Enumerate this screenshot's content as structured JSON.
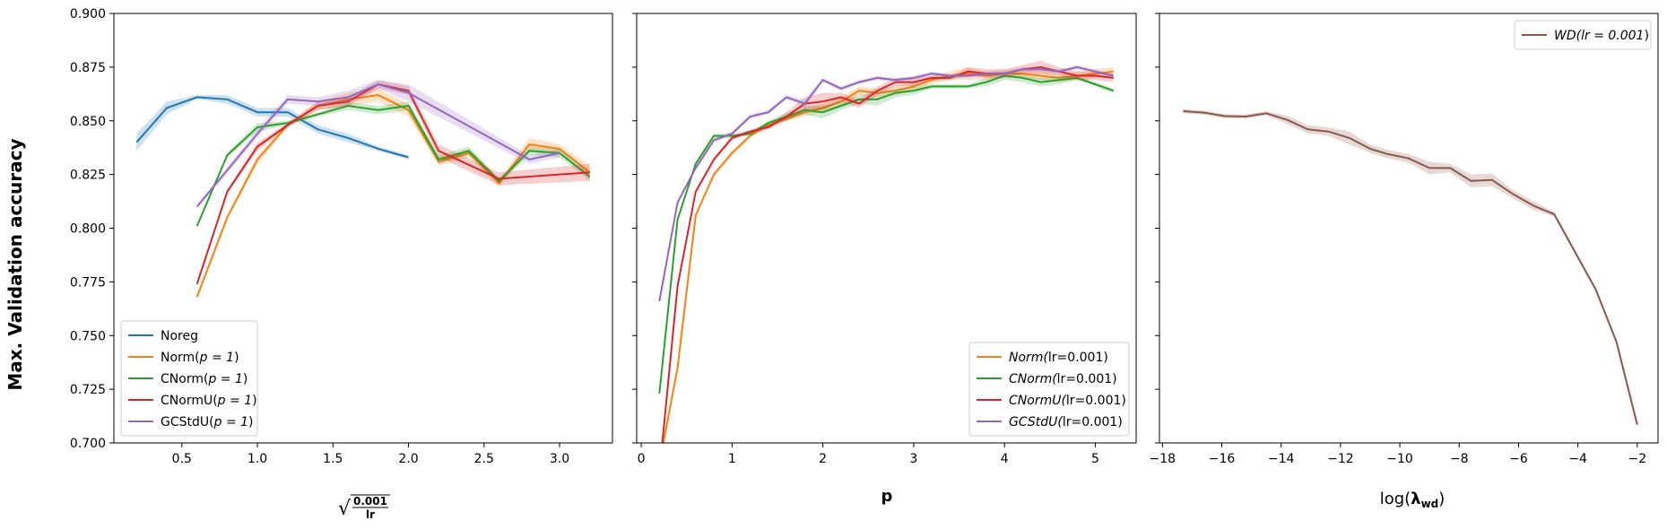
{
  "figure": {
    "ylabel": "Max. Validation accuracy",
    "xlabels": {
      "panel1": "√(0.001/lr)",
      "panel2": "p",
      "panel3": "log(λ_wd)"
    }
  },
  "chart_data": [
    {
      "type": "line",
      "xlabel": "√(0.001/lr)",
      "ylabel": "Max. Validation accuracy",
      "xlim": [
        0.05,
        3.35
      ],
      "ylim": [
        0.7,
        0.9
      ],
      "xticks": [
        0.5,
        1.0,
        1.5,
        2.0,
        2.5,
        3.0
      ],
      "xtick_labels": [
        "0.5",
        "1.0",
        "1.5",
        "2.0",
        "2.5",
        "3.0"
      ],
      "yticks": [
        0.7,
        0.725,
        0.75,
        0.775,
        0.8,
        0.825,
        0.85,
        0.875,
        0.9
      ],
      "ytick_labels": [
        "0.700",
        "0.725",
        "0.750",
        "0.775",
        "0.800",
        "0.825",
        "0.850",
        "0.875",
        "0.900"
      ],
      "legend_position": "lower-left",
      "series": [
        {
          "name": "Noreg",
          "color": "#1f77b4",
          "x": [
            0.2,
            0.4,
            0.6,
            0.8,
            1.0,
            1.2,
            1.4,
            1.6,
            1.8,
            2.0
          ],
          "y": [
            0.84,
            0.856,
            0.861,
            0.86,
            0.854,
            0.854,
            0.846,
            0.842,
            0.837,
            0.833
          ],
          "err": [
            0.004,
            0.003,
            0.001,
            0.002,
            0.002,
            0.002,
            0.002,
            0.002,
            0.001,
            0.001
          ]
        },
        {
          "name": "Norm(p = 1)",
          "color": "#ff7f0e",
          "x": [
            0.6,
            0.8,
            1.0,
            1.2,
            1.4,
            1.6,
            1.8,
            2.0,
            2.2,
            2.4,
            2.6,
            2.8,
            3.0,
            3.2
          ],
          "y": [
            0.768,
            0.805,
            0.832,
            0.848,
            0.857,
            0.86,
            0.862,
            0.855,
            0.831,
            0.835,
            0.821,
            0.839,
            0.837,
            0.826
          ],
          "err": [
            0.001,
            0.001,
            0.002,
            0.001,
            0.002,
            0.003,
            0.003,
            0.003,
            0.002,
            0.002,
            0.002,
            0.003,
            0.002,
            0.003
          ]
        },
        {
          "name": "CNorm(p = 1)",
          "color": "#2ca02c",
          "x": [
            0.6,
            0.8,
            1.0,
            1.2,
            1.4,
            1.6,
            1.8,
            2.0,
            2.2,
            2.4,
            2.6,
            2.8,
            3.0,
            3.2
          ],
          "y": [
            0.801,
            0.834,
            0.847,
            0.849,
            0.853,
            0.857,
            0.855,
            0.857,
            0.832,
            0.836,
            0.822,
            0.836,
            0.835,
            0.824
          ],
          "err": [
            0.001,
            0.001,
            0.002,
            0.001,
            0.001,
            0.002,
            0.002,
            0.002,
            0.002,
            0.002,
            0.001,
            0.002,
            0.002,
            0.002
          ]
        },
        {
          "name": "CNormU(p = 1)",
          "color": "#d62728",
          "x": [
            0.6,
            0.8,
            1.0,
            1.2,
            1.4,
            1.6,
            1.8,
            2.0,
            2.2,
            2.6,
            3.2
          ],
          "y": [
            0.774,
            0.817,
            0.838,
            0.848,
            0.857,
            0.859,
            0.867,
            0.864,
            0.836,
            0.823,
            0.826
          ],
          "err": [
            0.001,
            0.001,
            0.002,
            0.001,
            0.002,
            0.002,
            0.002,
            0.002,
            0.003,
            0.003,
            0.004
          ]
        },
        {
          "name": "GCStdU(p = 1)",
          "color": "#9467bd",
          "x": [
            0.6,
            1.0,
            1.2,
            1.4,
            1.6,
            1.8,
            2.0,
            2.8,
            3.0
          ],
          "y": [
            0.81,
            0.844,
            0.86,
            0.859,
            0.861,
            0.867,
            0.863,
            0.832,
            0.835
          ],
          "err": [
            0.001,
            0.002,
            0.002,
            0.002,
            0.003,
            0.002,
            0.004,
            0.002,
            0.002
          ]
        }
      ]
    },
    {
      "type": "line",
      "xlabel": "p",
      "xlim": [
        -0.05,
        5.45
      ],
      "ylim": [
        0.7,
        0.9
      ],
      "xticks": [
        0,
        1,
        2,
        3,
        4,
        5
      ],
      "xtick_labels": [
        "0",
        "1",
        "2",
        "3",
        "4",
        "5"
      ],
      "yticks": [
        0.7,
        0.725,
        0.75,
        0.775,
        0.8,
        0.825,
        0.85,
        0.875,
        0.9
      ],
      "legend_position": "lower-right",
      "series": [
        {
          "name": "Norm(lr=0.001)",
          "color": "#ff7f0e",
          "x": [
            0.2,
            0.4,
            0.6,
            0.8,
            1.0,
            1.2,
            1.4,
            1.6,
            1.8,
            2.0,
            2.2,
            2.4,
            2.6,
            2.8,
            3.0,
            3.2,
            3.4,
            3.6,
            3.8,
            4.0,
            4.2,
            4.4,
            4.6,
            4.8,
            5.0,
            5.2
          ],
          "y": [
            0.69,
            0.735,
            0.806,
            0.825,
            0.835,
            0.843,
            0.848,
            0.851,
            0.854,
            0.856,
            0.859,
            0.864,
            0.863,
            0.864,
            0.866,
            0.869,
            0.871,
            0.872,
            0.871,
            0.872,
            0.872,
            0.871,
            0.87,
            0.871,
            0.872,
            0.873
          ],
          "err": [
            0.001,
            0.001,
            0.001,
            0.001,
            0.001,
            0.001,
            0.001,
            0.001,
            0.002,
            0.002,
            0.002,
            0.002,
            0.002,
            0.002,
            0.002,
            0.002,
            0.002,
            0.003,
            0.002,
            0.002,
            0.002,
            0.002,
            0.002,
            0.002,
            0.002,
            0.002
          ]
        },
        {
          "name": "CNorm(lr=0.001)",
          "color": "#2ca02c",
          "x": [
            0.2,
            0.4,
            0.6,
            0.8,
            1.0,
            1.2,
            1.4,
            1.6,
            1.8,
            2.0,
            2.2,
            2.4,
            2.6,
            2.8,
            3.0,
            3.2,
            3.4,
            3.6,
            3.8,
            4.0,
            4.2,
            4.4,
            4.6,
            4.8,
            5.0,
            5.2
          ],
          "y": [
            0.723,
            0.804,
            0.83,
            0.843,
            0.843,
            0.844,
            0.849,
            0.852,
            0.855,
            0.854,
            0.857,
            0.86,
            0.86,
            0.863,
            0.864,
            0.866,
            0.866,
            0.866,
            0.868,
            0.871,
            0.87,
            0.868,
            0.869,
            0.87,
            0.867,
            0.864
          ],
          "err": [
            0.001,
            0.001,
            0.001,
            0.001,
            0.001,
            0.001,
            0.001,
            0.002,
            0.002,
            0.003,
            0.002,
            0.002,
            0.003,
            0.002,
            0.002,
            0.001,
            0.001,
            0.001,
            0.002,
            0.002,
            0.002,
            0.002,
            0.002,
            0.001,
            0.001,
            0.001
          ]
        },
        {
          "name": "CNormU(lr=0.001)",
          "color": "#d62728",
          "x": [
            0.2,
            0.4,
            0.6,
            0.8,
            1.0,
            1.2,
            1.4,
            1.6,
            1.8,
            2.0,
            2.2,
            2.4,
            2.6,
            2.8,
            3.0,
            3.2,
            3.4,
            3.6,
            3.8,
            4.0,
            4.2,
            4.4,
            4.6,
            4.8,
            5.0,
            5.2
          ],
          "y": [
            0.686,
            0.773,
            0.817,
            0.832,
            0.842,
            0.845,
            0.847,
            0.852,
            0.858,
            0.859,
            0.861,
            0.858,
            0.864,
            0.868,
            0.868,
            0.87,
            0.87,
            0.873,
            0.872,
            0.872,
            0.874,
            0.875,
            0.873,
            0.871,
            0.871,
            0.87
          ],
          "err": [
            0.001,
            0.001,
            0.001,
            0.001,
            0.001,
            0.001,
            0.001,
            0.002,
            0.003,
            0.004,
            0.002,
            0.002,
            0.002,
            0.002,
            0.002,
            0.001,
            0.001,
            0.002,
            0.002,
            0.002,
            0.002,
            0.003,
            0.002,
            0.002,
            0.002,
            0.002
          ]
        },
        {
          "name": "GCStdU(lr=0.001)",
          "color": "#9467bd",
          "x": [
            0.2,
            0.4,
            0.6,
            0.8,
            1.0,
            1.2,
            1.4,
            1.6,
            1.8,
            2.0,
            2.2,
            2.4,
            2.6,
            2.8,
            3.0,
            3.2,
            3.4,
            3.6,
            3.8,
            4.0,
            4.2,
            4.4,
            4.6,
            4.8,
            5.0,
            5.2
          ],
          "y": [
            0.766,
            0.812,
            0.828,
            0.841,
            0.844,
            0.852,
            0.854,
            0.861,
            0.858,
            0.869,
            0.865,
            0.868,
            0.87,
            0.869,
            0.87,
            0.872,
            0.871,
            0.871,
            0.872,
            0.872,
            0.874,
            0.874,
            0.873,
            0.875,
            0.873,
            0.871
          ],
          "err": [
            0.001,
            0.001,
            0.001,
            0.001,
            0.001,
            0.001,
            0.001,
            0.001,
            0.002,
            0.001,
            0.001,
            0.001,
            0.001,
            0.001,
            0.001,
            0.001,
            0.001,
            0.001,
            0.001,
            0.001,
            0.001,
            0.001,
            0.001,
            0.001,
            0.001,
            0.001
          ]
        }
      ]
    },
    {
      "type": "line",
      "xlabel": "log(λ_wd)",
      "xlim": [
        -18.1,
        -1.3
      ],
      "ylim": [
        0.7,
        0.9
      ],
      "xticks": [
        -18,
        -16,
        -14,
        -12,
        -10,
        -8,
        -6,
        -4,
        -2
      ],
      "xtick_labels": [
        "−18",
        "−16",
        "−14",
        "−12",
        "−10",
        "−8",
        "−6",
        "−4",
        "−2"
      ],
      "yticks": [
        0.7,
        0.725,
        0.75,
        0.775,
        0.8,
        0.825,
        0.85,
        0.875,
        0.9
      ],
      "legend_position": "upper-right",
      "series": [
        {
          "name": "WD(lr = 0.001)",
          "color": "#8c564b",
          "x": [
            -17.3,
            -16.6,
            -15.9,
            -15.2,
            -14.5,
            -13.8,
            -13.1,
            -12.4,
            -11.7,
            -11.0,
            -10.4,
            -9.7,
            -9.0,
            -8.3,
            -7.6,
            -6.9,
            -6.2,
            -5.5,
            -4.8,
            -4.1,
            -3.4,
            -2.7,
            -2.0
          ],
          "y": [
            0.8545,
            0.8538,
            0.8522,
            0.852,
            0.8535,
            0.8505,
            0.846,
            0.845,
            0.842,
            0.837,
            0.8345,
            0.8325,
            0.828,
            0.828,
            0.822,
            0.8225,
            0.816,
            0.8105,
            0.8065,
            0.789,
            0.7715,
            0.747,
            0.7085
          ],
          "err": [
            0.001,
            0.001,
            0.001,
            0.001,
            0.001,
            0.002,
            0.002,
            0.002,
            0.003,
            0.002,
            0.002,
            0.002,
            0.003,
            0.002,
            0.003,
            0.003,
            0.002,
            0.002,
            0.001,
            0.001,
            0.001,
            0.001,
            0.001
          ]
        }
      ]
    }
  ]
}
